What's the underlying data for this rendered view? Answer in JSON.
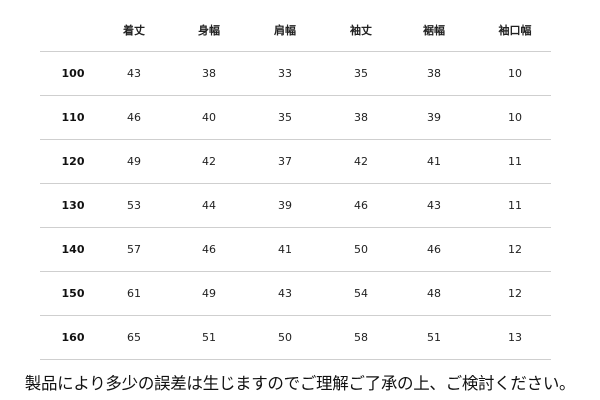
{
  "table": {
    "headers": [
      "",
      "着丈",
      "身幅",
      "肩幅",
      "袖丈",
      "裾幅",
      "袖口幅"
    ],
    "rows": [
      [
        "100",
        "43",
        "38",
        "33",
        "35",
        "38",
        "10"
      ],
      [
        "110",
        "46",
        "40",
        "35",
        "38",
        "39",
        "10"
      ],
      [
        "120",
        "49",
        "42",
        "37",
        "42",
        "41",
        "11"
      ],
      [
        "130",
        "53",
        "44",
        "39",
        "46",
        "43",
        "11"
      ],
      [
        "140",
        "57",
        "46",
        "41",
        "50",
        "46",
        "12"
      ],
      [
        "150",
        "61",
        "49",
        "43",
        "54",
        "48",
        "12"
      ],
      [
        "160",
        "65",
        "51",
        "50",
        "58",
        "51",
        "13"
      ]
    ]
  },
  "note": "製品により多少の誤差は生じますのでご理解ご了承の上、ご検討ください。"
}
